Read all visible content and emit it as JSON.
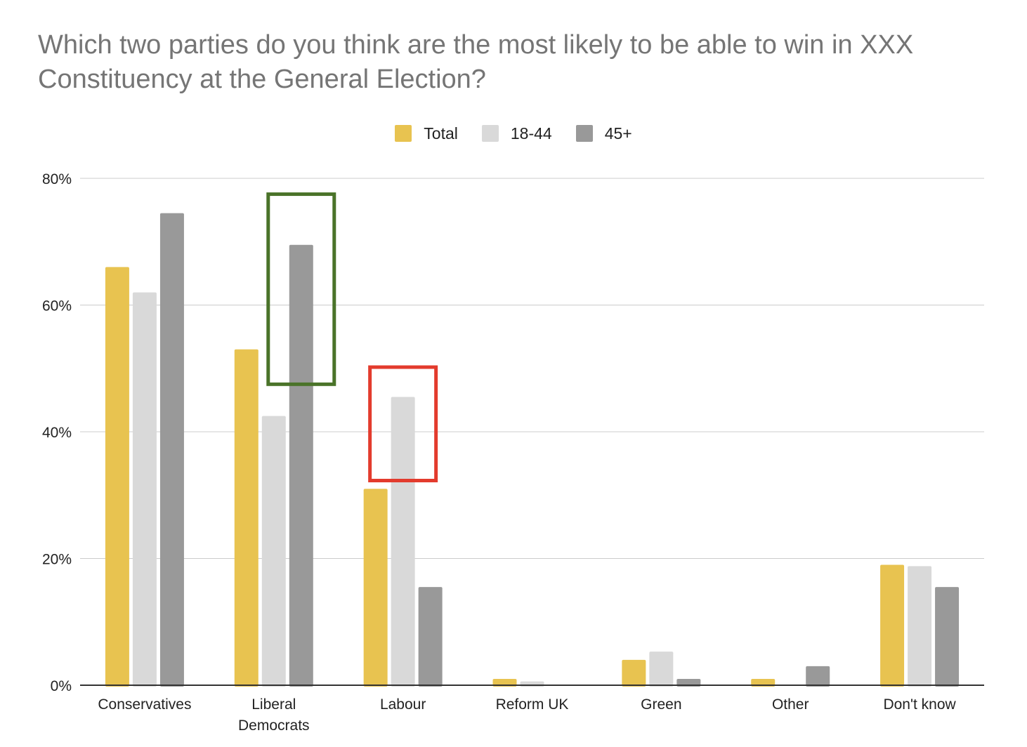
{
  "chart_data": {
    "type": "bar",
    "title": "Which two parties do you think are the most likely to be able to win in XXX Constituency at the General Election?",
    "categories": [
      [
        "Conservatives"
      ],
      [
        "Liberal",
        "Democrats"
      ],
      [
        "Labour"
      ],
      [
        "Reform UK"
      ],
      [
        "Green"
      ],
      [
        "Other"
      ],
      [
        "Don't know"
      ]
    ],
    "series": [
      {
        "name": "Total",
        "color": "#e8c350",
        "values": [
          66,
          53,
          31,
          1,
          4,
          1,
          19
        ]
      },
      {
        "name": "18-44",
        "color": "#d9d9d9",
        "values": [
          62,
          42.5,
          45.5,
          0.6,
          5.3,
          0,
          18.8
        ]
      },
      {
        "name": "45+",
        "color": "#999999",
        "values": [
          74.5,
          69.5,
          15.5,
          0,
          1,
          3,
          15.5
        ]
      }
    ],
    "ylim": [
      0,
      80
    ],
    "yticks": [
      "0%",
      "20%",
      "40%",
      "60%",
      "80%"
    ],
    "ytick_values": [
      0,
      20,
      40,
      60,
      80
    ],
    "xlabel": "",
    "ylabel": "",
    "grid": true,
    "legend_position": "top-center",
    "highlights": [
      {
        "category": "Liberal Democrats",
        "series": "45+",
        "color": "#4a7329",
        "y_from": 47.5,
        "y_to": 77.5
      },
      {
        "category": "Labour",
        "series": "18-44",
        "color": "#e33b2d",
        "y_from": 32.3,
        "y_to": 50.2
      }
    ]
  }
}
